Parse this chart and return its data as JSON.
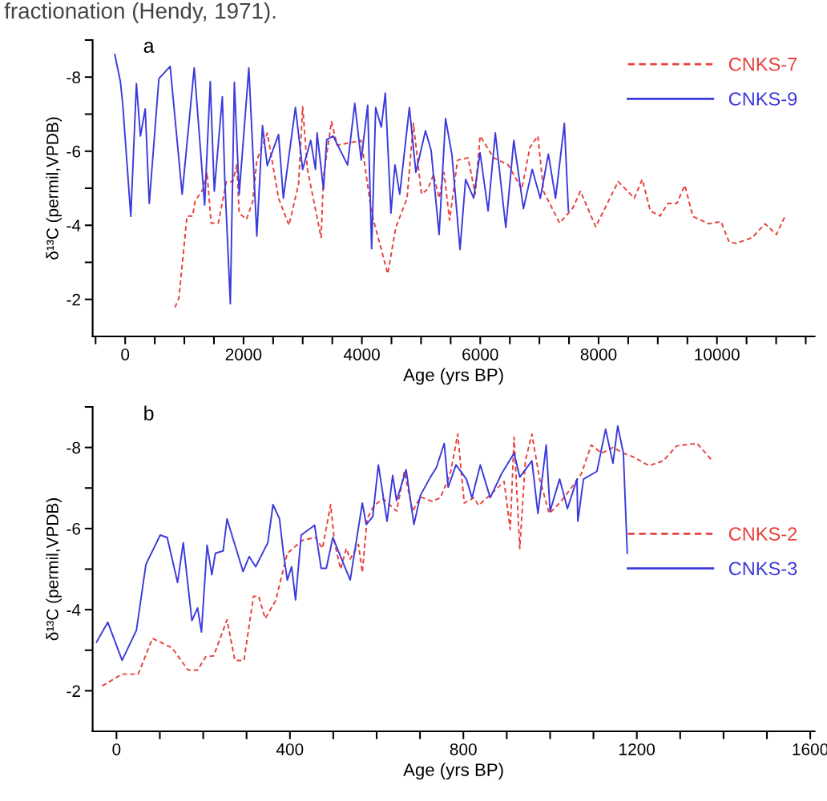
{
  "chart_data": [
    {
      "type": "line",
      "xlabel": "Age (yrs BP)",
      "ylabel": "δ¹³C (permil,VPDB)",
      "annotations": [
        "a",
        "fractionation (Hendy, 1971)."
      ],
      "xlim": [
        -550,
        11650
      ],
      "ylim": [
        -1,
        -9
      ],
      "xticks": [
        {
          "value": -500,
          "label": null
        },
        0,
        {
          "value": 500,
          "label": null
        },
        {
          "value": 1000,
          "label": null
        },
        {
          "value": 1500,
          "label": null
        },
        2000,
        {
          "value": 2500,
          "label": null
        },
        {
          "value": 3000,
          "label": null
        },
        {
          "value": 3500,
          "label": null
        },
        4000,
        {
          "value": 4500,
          "label": null
        },
        {
          "value": 5000,
          "label": null
        },
        {
          "value": 5500,
          "label": null
        },
        6000,
        {
          "value": 6500,
          "label": null
        },
        {
          "value": 7000,
          "label": null
        },
        {
          "value": 7500,
          "label": null
        },
        8000,
        {
          "value": 8500,
          "label": null
        },
        {
          "value": 9000,
          "label": null
        },
        {
          "value": 9500,
          "label": null
        },
        10000,
        {
          "value": 10500,
          "label": null
        },
        {
          "value": 11000,
          "label": null
        },
        {
          "value": 11500,
          "label": null
        }
      ],
      "yticks": [
        {
          "value": -9,
          "label": null
        },
        -8,
        {
          "value": -7,
          "label": null
        },
        -6,
        {
          "value": -5,
          "label": null
        },
        -4,
        {
          "value": -3,
          "label": null
        },
        -2
      ],
      "legend": "top right",
      "grid": false,
      "marker": "none",
      "series": [
        {
          "name": "CNKS-7",
          "color": "#e8413c",
          "line_style": "dashed",
          "x": [
            841,
            909,
            1045,
            1140,
            1181,
            1316,
            1384,
            1452,
            1574,
            1710,
            1818,
            1886,
            1927,
            2049,
            2157,
            2225,
            2402,
            2592,
            2768,
            2931,
            2999,
            3080,
            3311,
            3351,
            3487,
            3582,
            3989,
            4165,
            4437,
            4573,
            4763,
            4871,
            5007,
            5115,
            5210,
            5305,
            5387,
            5482,
            5617,
            5794,
            5916,
            5997,
            6228,
            6472,
            6703,
            6839,
            6974,
            7069,
            7341,
            7558,
            7694,
            7951,
            8331,
            8603,
            8738,
            8874,
            9037,
            9172,
            9322,
            9457,
            9593,
            9864,
            10068,
            10204,
            10326,
            10597,
            10814,
            11004,
            11153
          ],
          "values": [
            -1.78,
            -2.04,
            -4.25,
            -4.25,
            -4.65,
            -4.98,
            -5.43,
            -4.06,
            -4.06,
            -5.18,
            -5.18,
            -5.63,
            -4.33,
            -4.16,
            -4.65,
            -5.76,
            -6.49,
            -4.73,
            -4.0,
            -5.12,
            -7.2,
            -5.51,
            -3.67,
            -5.31,
            -6.8,
            -6.16,
            -6.29,
            -4.33,
            -2.69,
            -3.94,
            -4.73,
            -6.75,
            -4.84,
            -4.98,
            -5.37,
            -4.73,
            -5.43,
            -4.14,
            -5.76,
            -5.82,
            -4.84,
            -6.41,
            -5.82,
            -5.63,
            -4.98,
            -6.1,
            -6.41,
            -4.92,
            -4.06,
            -4.45,
            -4.92,
            -3.96,
            -5.18,
            -4.73,
            -5.24,
            -4.39,
            -4.25,
            -4.59,
            -4.59,
            -5.08,
            -4.24,
            -4.04,
            -4.1,
            -3.55,
            -3.51,
            -3.67,
            -4.04,
            -3.75,
            -4.25
          ]
        },
        {
          "name": "CNKS-9",
          "color": "#3b3bdc",
          "line_style": "solid",
          "x": [
            -176,
            -81,
            -41,
            95,
            190,
            258,
            339,
            407,
            570,
            760,
            963,
            1167,
            1343,
            1438,
            1506,
            1642,
            1683,
            1777,
            1845,
            1927,
            2090,
            2225,
            2320,
            2402,
            2592,
            2673,
            2877,
            2999,
            3135,
            3216,
            3243,
            3351,
            3406,
            3514,
            3758,
            3880,
            3989,
            4098,
            4165,
            4233,
            4328,
            4396,
            4491,
            4559,
            4640,
            4803,
            4912,
            5075,
            5170,
            5305,
            5414,
            5522,
            5658,
            5753,
            5889,
            5997,
            6133,
            6255,
            6432,
            6567,
            6730,
            6879,
            7015,
            7151,
            7273,
            7422,
            7490
          ],
          "values": [
            -8.61,
            -7.88,
            -7.27,
            -4.24,
            -7.82,
            -6.41,
            -7.14,
            -4.59,
            -7.96,
            -8.29,
            -4.84,
            -8.25,
            -4.55,
            -7.88,
            -4.92,
            -7.47,
            -5.24,
            -1.88,
            -7.86,
            -4.84,
            -8.25,
            -3.71,
            -6.69,
            -5.61,
            -6.45,
            -4.73,
            -7.18,
            -5.51,
            -6.29,
            -5.51,
            -6.49,
            -4.98,
            -6.31,
            -6.41,
            -5.63,
            -7.29,
            -5.76,
            -7.24,
            -3.37,
            -7.18,
            -6.65,
            -7.57,
            -4.33,
            -5.63,
            -4.84,
            -7.18,
            -5.43,
            -6.55,
            -6.02,
            -3.75,
            -6.88,
            -5.9,
            -3.35,
            -5.24,
            -4.73,
            -5.96,
            -4.39,
            -6.49,
            -3.94,
            -6.29,
            -4.45,
            -5.51,
            -4.73,
            -5.92,
            -4.73,
            -6.75,
            -4.39
          ]
        }
      ]
    },
    {
      "type": "line",
      "xlabel": "Age (yrs BP)",
      "ylabel": "δ¹³C (permil,VPDB)",
      "annotations": [
        "b"
      ],
      "xlim": [
        -55,
        1610
      ],
      "ylim": [
        -1,
        -9
      ],
      "xticks": [
        0,
        {
          "value": 100,
          "label": null
        },
        {
          "value": 200,
          "label": null
        },
        {
          "value": 300,
          "label": null
        },
        400,
        {
          "value": 500,
          "label": null
        },
        {
          "value": 600,
          "label": null
        },
        {
          "value": 700,
          "label": null
        },
        800,
        {
          "value": 900,
          "label": null
        },
        {
          "value": 1000,
          "label": null
        },
        {
          "value": 1100,
          "label": null
        },
        1200,
        {
          "value": 1300,
          "label": null
        },
        {
          "value": 1400,
          "label": null
        },
        {
          "value": 1500,
          "label": null
        },
        1600
      ],
      "yticks": [
        {
          "value": -9,
          "label": null
        },
        -8,
        {
          "value": -7,
          "label": null
        },
        -6,
        {
          "value": -5,
          "label": null
        },
        -4,
        {
          "value": -3,
          "label": null
        },
        -2
      ],
      "legend": "right",
      "grid": false,
      "marker": "none",
      "series": [
        {
          "name": "CNKS-2",
          "color": "#e8413c",
          "line_style": "dashed",
          "x": [
            -33,
            13,
            50,
            83,
            128,
            165,
            187,
            206,
            224,
            255,
            273,
            294,
            316,
            328,
            343,
            367,
            394,
            429,
            459,
            475,
            494,
            503,
            517,
            530,
            539,
            558,
            567,
            578,
            594,
            615,
            646,
            664,
            683,
            701,
            728,
            747,
            765,
            771,
            787,
            802,
            824,
            835,
            861,
            894,
            908,
            917,
            930,
            943,
            958,
            976,
            998,
            1022,
            1046,
            1072,
            1095,
            1119,
            1145,
            1169,
            1193,
            1228,
            1261,
            1292,
            1339,
            1376
          ],
          "values": [
            -2.12,
            -2.41,
            -2.41,
            -3.29,
            -3.06,
            -2.51,
            -2.51,
            -2.84,
            -2.86,
            -3.75,
            -2.75,
            -2.75,
            -4.33,
            -4.33,
            -3.78,
            -4.22,
            -5.39,
            -5.71,
            -5.78,
            -5.51,
            -6.59,
            -5.65,
            -5.0,
            -5.51,
            -5.25,
            -5.61,
            -4.92,
            -6.24,
            -6.57,
            -6.73,
            -6.43,
            -7.41,
            -6.43,
            -6.78,
            -6.67,
            -6.76,
            -7.22,
            -7.41,
            -8.33,
            -6.63,
            -6.76,
            -6.57,
            -6.82,
            -7.16,
            -5.98,
            -8.25,
            -5.51,
            -7.67,
            -8.33,
            -7.22,
            -6.37,
            -6.63,
            -6.96,
            -7.35,
            -8.06,
            -7.86,
            -8.0,
            -7.86,
            -7.76,
            -7.55,
            -7.67,
            -8.04,
            -8.1,
            -7.65
          ]
        },
        {
          "name": "CNKS-3",
          "color": "#3b3bdc",
          "line_style": "solid",
          "x": [
            -46,
            -20,
            13,
            46,
            68,
            101,
            117,
            141,
            154,
            174,
            187,
            196,
            209,
            220,
            228,
            246,
            255,
            264,
            292,
            306,
            321,
            349,
            361,
            376,
            385,
            394,
            404,
            413,
            426,
            457,
            472,
            484,
            499,
            539,
            567,
            576,
            591,
            604,
            624,
            637,
            646,
            668,
            686,
            701,
            723,
            738,
            756,
            765,
            783,
            807,
            820,
            839,
            862,
            888,
            917,
            930,
            958,
            972,
            991,
            1000,
            1022,
            1040,
            1062,
            1064,
            1077,
            1108,
            1128,
            1145,
            1156,
            1169,
            1178
          ],
          "values": [
            -3.2,
            -3.69,
            -2.75,
            -3.49,
            -5.12,
            -5.84,
            -5.78,
            -4.67,
            -5.65,
            -3.73,
            -4.04,
            -3.45,
            -5.59,
            -4.86,
            -5.39,
            -5.45,
            -6.24,
            -5.92,
            -4.94,
            -5.31,
            -5.06,
            -5.65,
            -6.59,
            -6.24,
            -5.39,
            -4.73,
            -5.06,
            -4.24,
            -5.84,
            -6.08,
            -5.02,
            -5.02,
            -5.78,
            -4.73,
            -6.63,
            -6.1,
            -6.29,
            -7.57,
            -6.18,
            -7.31,
            -6.69,
            -7.45,
            -6.1,
            -6.82,
            -7.25,
            -7.51,
            -8.1,
            -7.02,
            -7.57,
            -7.22,
            -6.76,
            -7.57,
            -6.76,
            -7.35,
            -7.86,
            -7.27,
            -7.67,
            -6.37,
            -8.06,
            -6.43,
            -7.22,
            -6.49,
            -7.22,
            -6.18,
            -7.22,
            -7.41,
            -8.45,
            -7.61,
            -8.53,
            -7.86,
            -5.39
          ]
        }
      ]
    }
  ]
}
